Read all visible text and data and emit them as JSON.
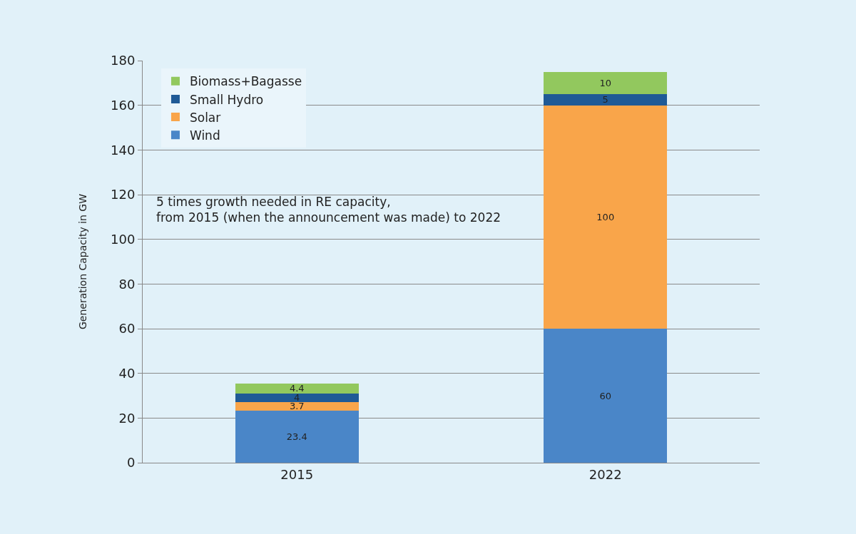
{
  "chart_data": {
    "type": "bar",
    "stacked": true,
    "ylabel": "Generation Capacity in GW",
    "categories": [
      "2015",
      "2022"
    ],
    "series": [
      {
        "name": "Wind",
        "color": "#4a86c8",
        "values": [
          23.4,
          60
        ]
      },
      {
        "name": "Solar",
        "color": "#f9a54a",
        "values": [
          3.7,
          100
        ]
      },
      {
        "name": "Small Hydro",
        "color": "#1f5a96",
        "values": [
          4,
          5
        ]
      },
      {
        "name": "Biomass+Bagasse",
        "color": "#92c85e",
        "values": [
          4.4,
          10
        ]
      }
    ],
    "ylim": [
      0,
      180
    ],
    "yticks": [
      0,
      20,
      40,
      60,
      80,
      100,
      120,
      140,
      160,
      180
    ],
    "grid": "y",
    "legend": "top left",
    "data_labels": true,
    "annotations": [
      "5 times growth needed in RE capacity,\nfrom 2015 (when the announcement was made) to 2022"
    ]
  }
}
